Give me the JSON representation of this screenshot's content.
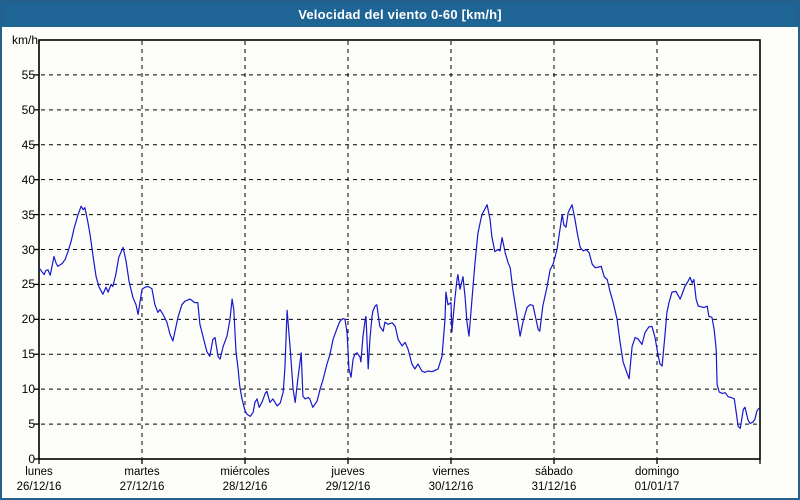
{
  "window": {
    "title": "Velocidad del viento 0-60 [km/h]"
  },
  "colors": {
    "titlebar": "#1e6494",
    "window_border": "#24608a",
    "background": "#fdfefa",
    "axis": "#000000",
    "grid": "#000000",
    "text": "#000000",
    "line": "#1717cc"
  },
  "chart_data": {
    "type": "line",
    "title": "Velocidad del viento 0-60 [km/h]",
    "ylabel": "km/h",
    "ylim": [
      0,
      60
    ],
    "ytick_step": 5,
    "yticks": [
      0,
      5,
      10,
      15,
      20,
      25,
      30,
      35,
      40,
      45,
      50,
      55
    ],
    "grid": "dashed-both-axes",
    "legend_position": "none",
    "x_range_hours": [
      0,
      168
    ],
    "x_days": [
      {
        "label": "lunes",
        "date": "26/12/16"
      },
      {
        "label": "martes",
        "date": "27/12/16"
      },
      {
        "label": "miércoles",
        "date": "28/12/16"
      },
      {
        "label": "jueves",
        "date": "29/12/16"
      },
      {
        "label": "viernes",
        "date": "30/12/16"
      },
      {
        "label": "sábado",
        "date": "31/12/16"
      },
      {
        "label": "domingo",
        "date": "01/01/17"
      }
    ],
    "series": [
      {
        "name": "velocidad del viento",
        "unit": "km/h",
        "color": "#1717cc",
        "points": [
          [
            0,
            27.4
          ],
          [
            0.7,
            26.8
          ],
          [
            1.2,
            26.4
          ],
          [
            1.6,
            27
          ],
          [
            2.1,
            27.1
          ],
          [
            2.6,
            26.3
          ],
          [
            3.5,
            29
          ],
          [
            4,
            28
          ],
          [
            4.4,
            27.6
          ],
          [
            5.4,
            28
          ],
          [
            6.1,
            28.6
          ],
          [
            6.8,
            29.8
          ],
          [
            7.5,
            31.2
          ],
          [
            8.2,
            33.1
          ],
          [
            9.1,
            35
          ],
          [
            9.8,
            36.2
          ],
          [
            10.3,
            35.7
          ],
          [
            10.7,
            36
          ],
          [
            11.4,
            33.9
          ],
          [
            11.9,
            32.1
          ],
          [
            12.6,
            29
          ],
          [
            13.3,
            26.1
          ],
          [
            14,
            24.6
          ],
          [
            14.9,
            23.6
          ],
          [
            15.6,
            24.6
          ],
          [
            16.1,
            23.9
          ],
          [
            16.8,
            25
          ],
          [
            17.2,
            24.7
          ],
          [
            17.9,
            26.4
          ],
          [
            18.6,
            28.9
          ],
          [
            19.6,
            30.3
          ],
          [
            20.3,
            28.3
          ],
          [
            21,
            25.4
          ],
          [
            21.9,
            23.1
          ],
          [
            22.6,
            22.1
          ],
          [
            23.1,
            20.7
          ],
          [
            24,
            24.3
          ],
          [
            24.7,
            24.6
          ],
          [
            25.4,
            24.7
          ],
          [
            26.3,
            24.4
          ],
          [
            27,
            22.1
          ],
          [
            27.7,
            21
          ],
          [
            28.2,
            21.4
          ],
          [
            28.9,
            20.7
          ],
          [
            29.8,
            19.6
          ],
          [
            30.5,
            17.9
          ],
          [
            31.2,
            16.9
          ],
          [
            32.4,
            20.3
          ],
          [
            33.3,
            22.1
          ],
          [
            34,
            22.6
          ],
          [
            35.2,
            22.9
          ],
          [
            36.3,
            22.4
          ],
          [
            37,
            22.4
          ],
          [
            37.5,
            19.3
          ],
          [
            38.2,
            17.6
          ],
          [
            39.1,
            15.4
          ],
          [
            39.8,
            14.7
          ],
          [
            40.5,
            17.1
          ],
          [
            41,
            17.4
          ],
          [
            41.7,
            14.7
          ],
          [
            42.2,
            14.3
          ],
          [
            42.9,
            16.1
          ],
          [
            43.8,
            17.6
          ],
          [
            44.5,
            20
          ],
          [
            45,
            22.9
          ],
          [
            45.4,
            21.4
          ],
          [
            45.9,
            15.4
          ],
          [
            46.4,
            12.9
          ],
          [
            46.8,
            10.4
          ],
          [
            47.3,
            8.6
          ],
          [
            48,
            6.9
          ],
          [
            48.5,
            6.4
          ],
          [
            49.2,
            6.1
          ],
          [
            49.9,
            6.7
          ],
          [
            50.3,
            8.1
          ],
          [
            50.8,
            8.6
          ],
          [
            51.3,
            7.4
          ],
          [
            52,
            8.2
          ],
          [
            52.7,
            9.4
          ],
          [
            53.1,
            9.7
          ],
          [
            53.8,
            8.1
          ],
          [
            54.5,
            8.6
          ],
          [
            55.5,
            7.6
          ],
          [
            56.2,
            8
          ],
          [
            56.9,
            9.6
          ],
          [
            57.3,
            13
          ],
          [
            57.8,
            21.3
          ],
          [
            58.5,
            16
          ],
          [
            59.2,
            10
          ],
          [
            59.7,
            8.1
          ],
          [
            60.3,
            11.4
          ],
          [
            61.1,
            15.2
          ],
          [
            61.5,
            9
          ],
          [
            62,
            8.6
          ],
          [
            62.7,
            8.8
          ],
          [
            63.1,
            8.6
          ],
          [
            63.8,
            7.4
          ],
          [
            64.8,
            8.3
          ],
          [
            65.5,
            10
          ],
          [
            66.2,
            11.4
          ],
          [
            67.1,
            13.6
          ],
          [
            67.8,
            15
          ],
          [
            68.5,
            17.1
          ],
          [
            69.4,
            18.6
          ],
          [
            70.1,
            19.7
          ],
          [
            70.8,
            20.1
          ],
          [
            71.3,
            20
          ],
          [
            71.8,
            18
          ],
          [
            72.2,
            13
          ],
          [
            72.7,
            11.7
          ],
          [
            73.2,
            14.3
          ],
          [
            73.6,
            15
          ],
          [
            74.1,
            15.2
          ],
          [
            74.8,
            14.6
          ],
          [
            75,
            13.9
          ],
          [
            75.5,
            17.6
          ],
          [
            76,
            20
          ],
          [
            76.2,
            20.4
          ],
          [
            76.7,
            12.9
          ],
          [
            77.1,
            17.1
          ],
          [
            77.6,
            20.4
          ],
          [
            77.8,
            21.2
          ],
          [
            78.3,
            21.9
          ],
          [
            78.7,
            22.1
          ],
          [
            79.4,
            19
          ],
          [
            80.2,
            18.3
          ],
          [
            80.6,
            19.6
          ],
          [
            81.3,
            19.3
          ],
          [
            82.3,
            19.5
          ],
          [
            83,
            19
          ],
          [
            83.7,
            17.1
          ],
          [
            84.6,
            16.2
          ],
          [
            85.3,
            16.7
          ],
          [
            86,
            15.7
          ],
          [
            86.9,
            13.6
          ],
          [
            87.6,
            12.9
          ],
          [
            88.3,
            13.6
          ],
          [
            89.2,
            12.6
          ],
          [
            89.9,
            12.4
          ],
          [
            90.6,
            12.6
          ],
          [
            91.6,
            12.5
          ],
          [
            92.3,
            12.7
          ],
          [
            93,
            12.9
          ],
          [
            93.9,
            14.7
          ],
          [
            94.6,
            20
          ],
          [
            94.8,
            23.9
          ],
          [
            95.3,
            22.1
          ],
          [
            96,
            22.4
          ],
          [
            96.2,
            18.2
          ],
          [
            96.9,
            23
          ],
          [
            97.4,
            25.7
          ],
          [
            97.6,
            26.4
          ],
          [
            98.1,
            24.3
          ],
          [
            98.8,
            26.1
          ],
          [
            99.3,
            23
          ],
          [
            99.7,
            19.7
          ],
          [
            100.2,
            17.6
          ],
          [
            100.9,
            22.9
          ],
          [
            101.6,
            28.1
          ],
          [
            102.3,
            32.4
          ],
          [
            103.2,
            35
          ],
          [
            104.4,
            36.4
          ],
          [
            105.1,
            34.3
          ],
          [
            105.5,
            31.9
          ],
          [
            106.2,
            29.7
          ],
          [
            106.9,
            30
          ],
          [
            107.4,
            29.8
          ],
          [
            107.9,
            31.7
          ],
          [
            108.6,
            29.6
          ],
          [
            109.3,
            28.1
          ],
          [
            109.8,
            27.4
          ],
          [
            110.4,
            24.3
          ],
          [
            111.4,
            20.4
          ],
          [
            112.1,
            17.6
          ],
          [
            112.8,
            19.7
          ],
          [
            113.7,
            21.7
          ],
          [
            114.4,
            22.1
          ],
          [
            115.1,
            22
          ],
          [
            115.8,
            20
          ],
          [
            116.3,
            18.6
          ],
          [
            116.7,
            18.3
          ],
          [
            117.4,
            21.9
          ],
          [
            118.4,
            24.7
          ],
          [
            119.1,
            27.1
          ],
          [
            119.8,
            27.9
          ],
          [
            120.7,
            30
          ],
          [
            121.4,
            32.9
          ],
          [
            121.9,
            35
          ],
          [
            122.3,
            33.5
          ],
          [
            122.8,
            33.2
          ],
          [
            123.3,
            35.3
          ],
          [
            124.2,
            36.4
          ],
          [
            124.9,
            34.3
          ],
          [
            125.4,
            32.4
          ],
          [
            126.1,
            30.3
          ],
          [
            126.8,
            29.8
          ],
          [
            127.5,
            30
          ],
          [
            128.2,
            29.5
          ],
          [
            128.9,
            27.9
          ],
          [
            129.6,
            27.4
          ],
          [
            130.5,
            27.5
          ],
          [
            131,
            27.6
          ],
          [
            131.7,
            26.1
          ],
          [
            132.4,
            25.7
          ],
          [
            133.1,
            23.9
          ],
          [
            133.8,
            22.4
          ],
          [
            134.7,
            20
          ],
          [
            135.4,
            16.7
          ],
          [
            136.1,
            13.9
          ],
          [
            137,
            12.3
          ],
          [
            137.5,
            11.5
          ],
          [
            138.2,
            16.1
          ],
          [
            138.9,
            17.4
          ],
          [
            139.6,
            17.2
          ],
          [
            140.5,
            16.4
          ],
          [
            141.2,
            18.1
          ],
          [
            142.1,
            18.9
          ],
          [
            142.8,
            19
          ],
          [
            143.5,
            17.5
          ],
          [
            144.2,
            15
          ],
          [
            144.7,
            13.6
          ],
          [
            145.2,
            13.3
          ],
          [
            145.9,
            18.1
          ],
          [
            146.3,
            21
          ],
          [
            146.8,
            22.4
          ],
          [
            147.5,
            23.9
          ],
          [
            148.4,
            24
          ],
          [
            149.4,
            22.9
          ],
          [
            150.5,
            24.7
          ],
          [
            151.2,
            25.4
          ],
          [
            151.7,
            26
          ],
          [
            152.2,
            25.2
          ],
          [
            152.6,
            25.7
          ],
          [
            153.1,
            22.9
          ],
          [
            153.6,
            21.9
          ],
          [
            154.3,
            21.8
          ],
          [
            155,
            21.7
          ],
          [
            155.7,
            21.9
          ],
          [
            156.1,
            20.4
          ],
          [
            156.8,
            20.3
          ],
          [
            157.3,
            18.6
          ],
          [
            157.8,
            15.7
          ],
          [
            158,
            10.7
          ],
          [
            158.5,
            9.6
          ],
          [
            159.2,
            9.4
          ],
          [
            159.9,
            9.5
          ],
          [
            160.6,
            8.9
          ],
          [
            161.3,
            8.8
          ],
          [
            162,
            8.6
          ],
          [
            162.4,
            6.9
          ],
          [
            162.9,
            4.7
          ],
          [
            163.4,
            4.4
          ],
          [
            164.1,
            7.1
          ],
          [
            164.5,
            7.4
          ],
          [
            165.2,
            5.6
          ],
          [
            165.7,
            5.1
          ],
          [
            166.4,
            5.3
          ],
          [
            166.8,
            5.7
          ],
          [
            167.3,
            6.9
          ],
          [
            167.8,
            7.3
          ]
        ]
      }
    ]
  }
}
